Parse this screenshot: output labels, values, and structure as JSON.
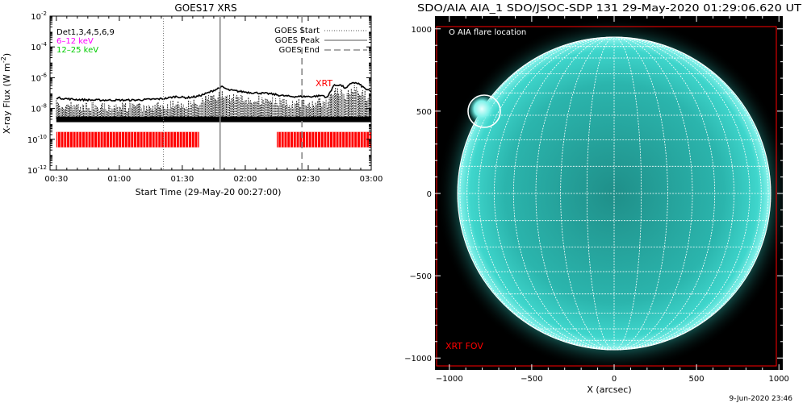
{
  "left_panel": {
    "title": "GOES17 XRS",
    "ylabel": "X-ray Flux (W m",
    "ylabel_sup": "-2",
    "ylabel_close": ")",
    "xlabel": "Start Time (29-May-20 00:27:00)",
    "legend_lines": [
      "GOES Start",
      "GOES Peak",
      "GOES End"
    ],
    "bands": [
      {
        "text": "Det1,3,4,5,6,9",
        "color": "#000000"
      },
      {
        "text": "6–12 keV",
        "color": "#ff00ff"
      },
      {
        "text": "12–25 keV",
        "color": "#00cc00"
      }
    ],
    "xrt_label": "XRT",
    "xrt_color": "#ff0000"
  },
  "right_panel": {
    "title": "SDO/AIA AIA_1 SDO/JSOC-SDP 131 29-May-2020 01:29:06.620 UT",
    "flare_label": "O AIA flare location",
    "xlabel": "X (arcsec)",
    "fov_label": "XRT FOV",
    "fov_color": "#ff0000",
    "disk_color": "#2fd3c8"
  },
  "footer_timestamp": "9-Jun-2020 23:46",
  "chart_data": [
    {
      "type": "line",
      "title": "GOES17 XRS",
      "xlabel": "Start Time (29-May-20 00:27:00)",
      "ylabel": "X-ray Flux (W m^-2)",
      "yscale": "log",
      "ylim": [
        1e-12,
        0.01
      ],
      "xlim_minutes": [
        0,
        153
      ],
      "x_ticks": [
        "00:30",
        "01:00",
        "01:30",
        "02:00",
        "02:30",
        "03:00"
      ],
      "x_ticks_minutes": [
        3,
        33,
        63,
        93,
        123,
        153
      ],
      "y_ticks": [
        "10^-12",
        "10^-10",
        "10^-8",
        "10^-6",
        "10^-4",
        "10^-2"
      ],
      "y_tick_values": [
        1e-12,
        1e-10,
        1e-08,
        1e-06,
        0.0001,
        0.01
      ],
      "markers_minutes": {
        "goes_start": 54,
        "goes_peak": 81,
        "goes_end": 120
      },
      "series": [
        {
          "name": "GOES XRS",
          "x_minutes": [
            3,
            10,
            20,
            30,
            40,
            50,
            55,
            60,
            65,
            70,
            75,
            80,
            82,
            85,
            90,
            95,
            100,
            105,
            110,
            115,
            120,
            125,
            130,
            132,
            135,
            138,
            141,
            144,
            147,
            150,
            153
          ],
          "y": [
            5e-08,
            4e-08,
            3.5e-08,
            3.5e-08,
            3.5e-08,
            4e-08,
            4.5e-08,
            6e-08,
            5e-08,
            6e-08,
            1e-07,
            2e-07,
            2.5e-07,
            1.6e-07,
            1.3e-07,
            1.1e-07,
            1e-07,
            9e-08,
            7e-08,
            6e-08,
            6e-08,
            6e-08,
            7e-08,
            5e-08,
            3e-07,
            3.5e-07,
            2e-07,
            5e-07,
            4e-07,
            2e-07,
            1.2e-07
          ]
        }
      ],
      "xrt_coverage_minutes": [
        [
          3,
          71
        ],
        [
          108,
          153
        ]
      ],
      "xrt_label": "XRT"
    },
    {
      "type": "scatter",
      "title": "SDO/AIA AIA_1 SDO/JSOC-SDP 131 29-May-2020 01:29:06.620 UT",
      "xlabel": "X (arcsec)",
      "x_ticks": [
        -1000,
        -500,
        0,
        500,
        1000
      ],
      "y_ticks": [
        -1000,
        -500,
        0,
        500,
        1000
      ],
      "xlim": [
        -1100,
        1100
      ],
      "ylim": [
        -1100,
        1020
      ],
      "solar_radius_arcsec": 950,
      "grid_spacing_deg": 10,
      "flare_location_arcsec": [
        -790,
        500
      ],
      "xrt_fov_arcsec": {
        "x": [
          -1100,
          1000
        ],
        "y": [
          -1100,
          1020
        ]
      }
    }
  ]
}
